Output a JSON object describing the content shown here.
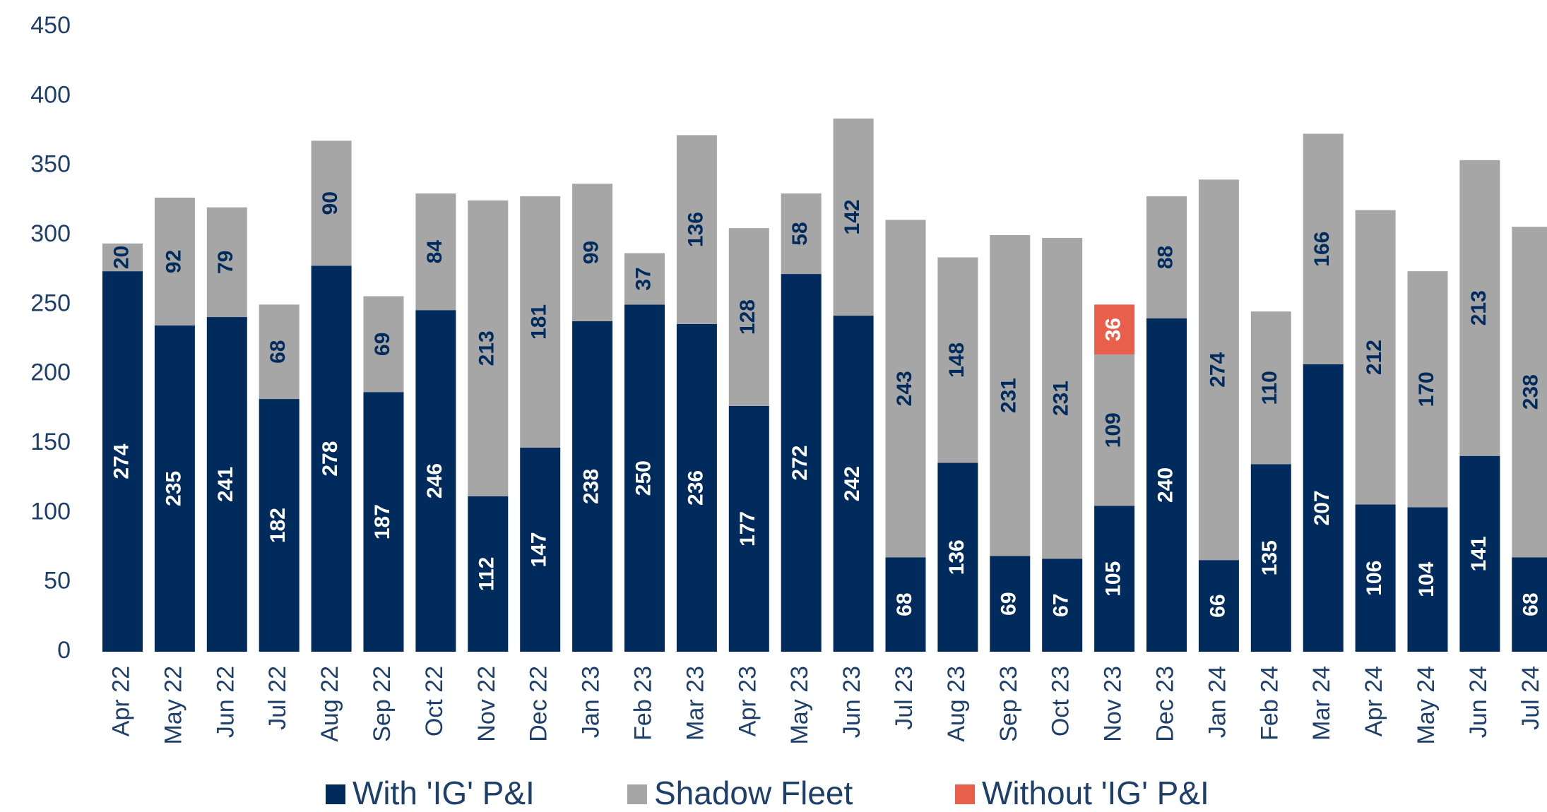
{
  "chart_data": {
    "type": "stacked-bar",
    "categories": [
      "Apr 22",
      "May 22",
      "Jun 22",
      "Jul 22",
      "Aug 22",
      "Sep 22",
      "Oct 22",
      "Nov 22",
      "Dec 22",
      "Jan 23",
      "Feb 23",
      "Mar 23",
      "Apr 23",
      "May 23",
      "Jun 23",
      "Jul 23",
      "Aug 23",
      "Sep 23",
      "Oct 23",
      "Nov 23",
      "Dec 23",
      "Jan 24",
      "Feb 24",
      "Mar 24",
      "Apr 24",
      "May 24",
      "Jun 24",
      "Jul 24"
    ],
    "series": [
      {
        "name": "With 'IG' P&I",
        "color": "#002b5c",
        "label_color": "#ffffff",
        "values": [
          274,
          235,
          241,
          182,
          278,
          187,
          246,
          112,
          147,
          238,
          250,
          236,
          177,
          272,
          242,
          68,
          136,
          69,
          67,
          105,
          240,
          66,
          135,
          207,
          106,
          104,
          141,
          68
        ]
      },
      {
        "name": "Shadow Fleet",
        "color": "#a6a6a6",
        "label_color": "#002b5c",
        "values": [
          20,
          92,
          79,
          68,
          90,
          69,
          84,
          213,
          181,
          99,
          37,
          136,
          128,
          58,
          142,
          243,
          148,
          231,
          231,
          109,
          88,
          274,
          110,
          166,
          212,
          170,
          213,
          238
        ]
      },
      {
        "name": "Without 'IG' P&I",
        "color": "#e8604c",
        "label_color": "#ffffff",
        "values": [
          null,
          null,
          null,
          null,
          null,
          null,
          null,
          null,
          null,
          null,
          null,
          null,
          null,
          null,
          null,
          null,
          null,
          null,
          null,
          36,
          null,
          null,
          null,
          null,
          null,
          null,
          null,
          null
        ]
      }
    ],
    "ylim": [
      0,
      450
    ],
    "yticks": [
      0,
      50,
      100,
      150,
      200,
      250,
      300,
      350,
      400,
      450
    ],
    "grid": false,
    "legend": "bottom"
  }
}
